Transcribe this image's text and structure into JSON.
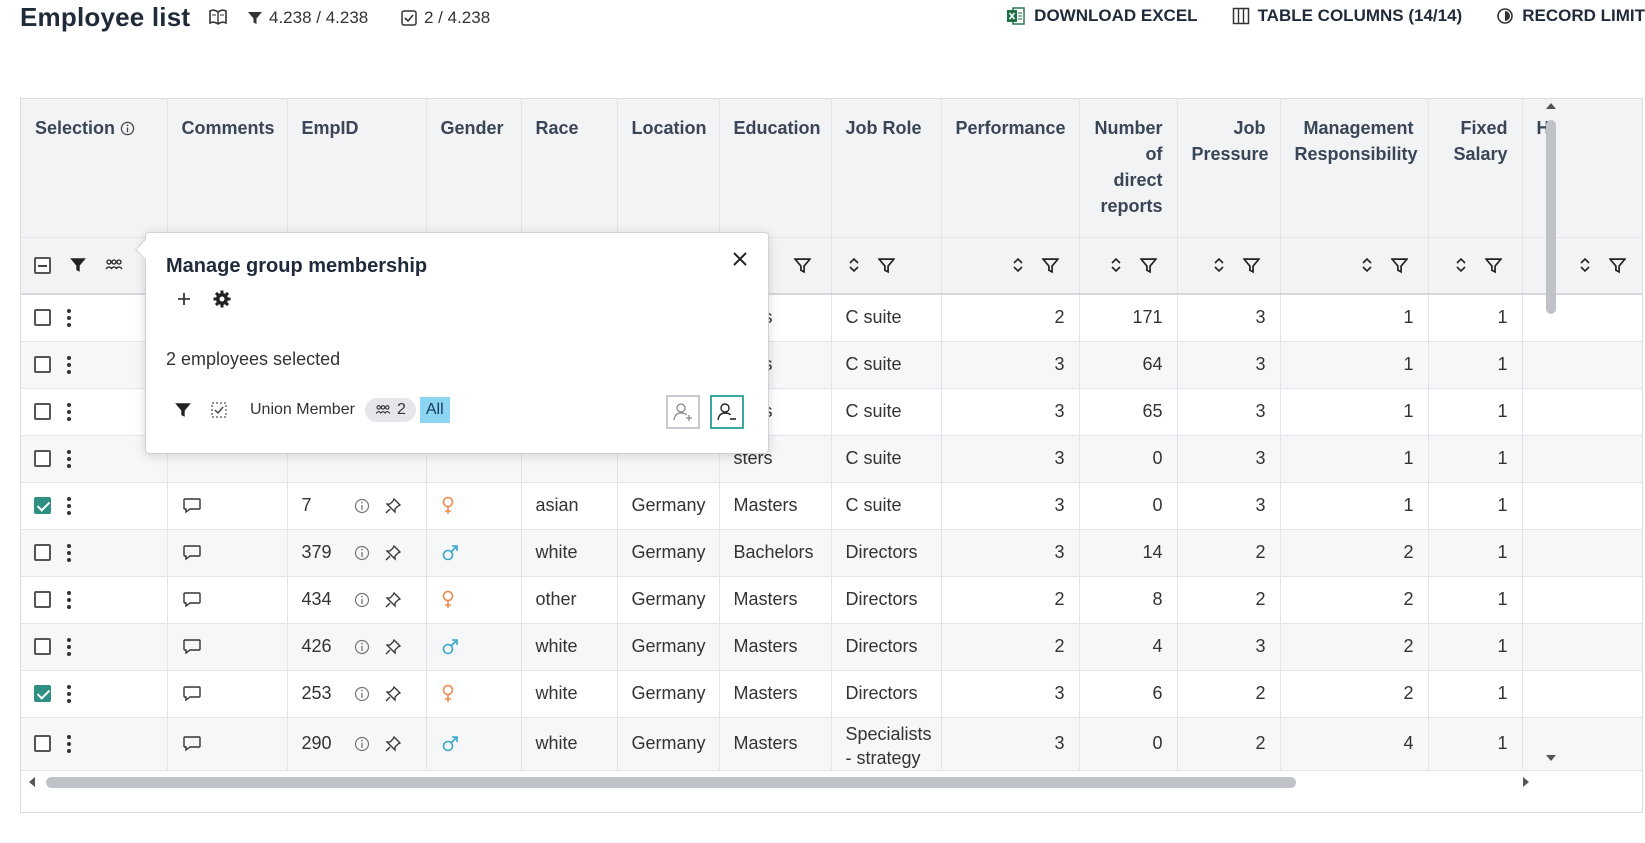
{
  "header": {
    "title": "Employee list",
    "filter_count": "4.238 / 4.238",
    "selection_count": "2 / 4.238"
  },
  "actions": {
    "download": "DOWNLOAD EXCEL",
    "columns": "TABLE COLUMNS (14/14)",
    "limit": "RECORD LIMIT"
  },
  "columns": [
    "Selection",
    "Comments",
    "EmpID",
    "Gender",
    "Race",
    "Location",
    "Education",
    "Job Role",
    "Performance",
    "Number of direct reports",
    "Job Pressure",
    "Management Responsibility",
    "Fixed Salary",
    "H"
  ],
  "popup": {
    "title": "Manage group membership",
    "selected_text": "2 employees selected",
    "group_name": "Union Member",
    "member_count": "2",
    "all_label": "All"
  },
  "rows": [
    {
      "checked": false,
      "id": "",
      "gender": "",
      "race": "",
      "location": "",
      "education": "sters",
      "job_role": "C suite",
      "performance": "2",
      "reports": "171",
      "pressure": "3",
      "mgmt": "1",
      "salary": "1"
    },
    {
      "checked": false,
      "id": "",
      "gender": "",
      "race": "",
      "location": "",
      "education": "sters",
      "job_role": "C suite",
      "performance": "3",
      "reports": "64",
      "pressure": "3",
      "mgmt": "1",
      "salary": "1"
    },
    {
      "checked": false,
      "id": "",
      "gender": "",
      "race": "",
      "location": "",
      "education": "sters",
      "job_role": "C suite",
      "performance": "3",
      "reports": "65",
      "pressure": "3",
      "mgmt": "1",
      "salary": "1"
    },
    {
      "checked": false,
      "id": "",
      "gender": "",
      "race": "",
      "location": "",
      "education": "sters",
      "job_role": "C suite",
      "performance": "3",
      "reports": "0",
      "pressure": "3",
      "mgmt": "1",
      "salary": "1"
    },
    {
      "checked": true,
      "id": "7",
      "gender": "female",
      "race": "asian",
      "location": "Germany",
      "education": "Masters",
      "job_role": "C suite",
      "performance": "3",
      "reports": "0",
      "pressure": "3",
      "mgmt": "1",
      "salary": "1"
    },
    {
      "checked": false,
      "id": "379",
      "gender": "male",
      "race": "white",
      "location": "Germany",
      "education": "Bachelors",
      "job_role": "Directors",
      "performance": "3",
      "reports": "14",
      "pressure": "2",
      "mgmt": "2",
      "salary": "1"
    },
    {
      "checked": false,
      "id": "434",
      "gender": "female",
      "race": "other",
      "location": "Germany",
      "education": "Masters",
      "job_role": "Directors",
      "performance": "2",
      "reports": "8",
      "pressure": "2",
      "mgmt": "2",
      "salary": "1"
    },
    {
      "checked": false,
      "id": "426",
      "gender": "male",
      "race": "white",
      "location": "Germany",
      "education": "Masters",
      "job_role": "Directors",
      "performance": "2",
      "reports": "4",
      "pressure": "3",
      "mgmt": "2",
      "salary": "1"
    },
    {
      "checked": true,
      "id": "253",
      "gender": "female",
      "race": "white",
      "location": "Germany",
      "education": "Masters",
      "job_role": "Directors",
      "performance": "3",
      "reports": "6",
      "pressure": "2",
      "mgmt": "2",
      "salary": "1"
    },
    {
      "checked": false,
      "id": "290",
      "gender": "male",
      "race": "white",
      "location": "Germany",
      "education": "Masters",
      "job_role": "Specialists - strategy",
      "performance": "3",
      "reports": "0",
      "pressure": "2",
      "mgmt": "4",
      "salary": "1"
    }
  ],
  "colors": {
    "accent": "#2f8f83",
    "female": "#f08a4b",
    "male": "#3aa7c8",
    "header_bg": "#f2f3f5",
    "chip_all": "#8dd6f3"
  },
  "icons": {
    "book": "book-open-icon",
    "filter": "filter-icon",
    "checkbox": "checkbox-icon",
    "excel": "excel-icon",
    "columns": "columns-icon",
    "limit": "record-limit-icon",
    "group": "group-icon",
    "comment": "comment-icon",
    "info": "info-icon",
    "pin": "pin-icon",
    "sort": "sort-icon",
    "close": "close-icon",
    "plus": "plus-icon",
    "gear": "gear-icon",
    "add_user": "add-user-icon",
    "remove_user": "remove-user-icon"
  }
}
